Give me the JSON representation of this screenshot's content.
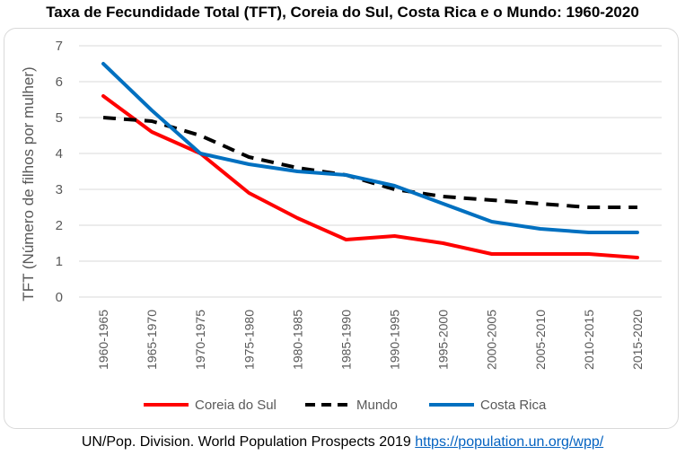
{
  "chart_data": {
    "type": "line",
    "title": "Taxa de Fecundidade Total (TFT), Coreia do Sul, Costa Rica e o Mundo: 1960-2020",
    "xlabel": "",
    "ylabel": "TFT (Número de filhos por mulher)",
    "ylim": [
      0,
      7
    ],
    "yticks": [
      "0",
      "1",
      "2",
      "3",
      "4",
      "5",
      "6",
      "7"
    ],
    "grid": true,
    "legend_position": "bottom",
    "categories": [
      "1960-1965",
      "1965-1970",
      "1970-1975",
      "1975-1980",
      "1980-1985",
      "1985-1990",
      "1990-1995",
      "1995-2000",
      "2000-2005",
      "2005-2010",
      "2010-2015",
      "2015-2020"
    ],
    "series": [
      {
        "name": "Coreia do Sul",
        "color": "#ff0000",
        "dash": "solid",
        "values": [
          5.6,
          4.6,
          4.0,
          2.9,
          2.2,
          1.6,
          1.7,
          1.5,
          1.2,
          1.2,
          1.2,
          1.1
        ]
      },
      {
        "name": "Mundo",
        "color": "#000000",
        "dash": "dashed",
        "values": [
          5.0,
          4.9,
          4.5,
          3.9,
          3.6,
          3.4,
          3.0,
          2.8,
          2.7,
          2.6,
          2.5,
          2.5
        ]
      },
      {
        "name": "Costa Rica",
        "color": "#0070c0",
        "dash": "solid",
        "values": [
          6.5,
          5.2,
          4.0,
          3.7,
          3.5,
          3.4,
          3.1,
          2.6,
          2.1,
          1.9,
          1.8,
          1.8
        ]
      }
    ]
  },
  "source": {
    "text": "UN/Pop. Division. World Population Prospects 2019",
    "link": "https://population.un.org/wpp/"
  }
}
